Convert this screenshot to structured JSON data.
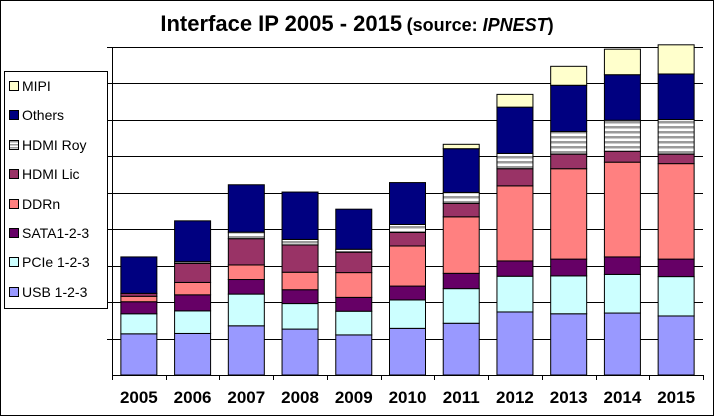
{
  "title": {
    "main": "Interface IP  2005 - 2015",
    "source_prefix": "(source: ",
    "source_name": "IPNEST",
    "source_suffix": ")"
  },
  "chart_data": {
    "type": "bar",
    "stacked": true,
    "categories": [
      "2005",
      "2006",
      "2007",
      "2008",
      "2009",
      "2010",
      "2011",
      "2012",
      "2013",
      "2014",
      "2015"
    ],
    "ylim": [
      0,
      900
    ],
    "y_ticks_labeled": false,
    "grid": "horizontal",
    "legend_position": "left",
    "xlabel": "",
    "ylabel": "",
    "series": [
      {
        "name": "USB 1-2-3",
        "color": "#9999FF",
        "values": [
          113,
          114,
          135,
          126,
          110,
          128,
          142,
          173,
          168,
          170,
          162
        ]
      },
      {
        "name": "PCIe 1-2-3",
        "color": "#CCFFFF",
        "values": [
          55,
          62,
          87,
          70,
          65,
          78,
          95,
          98,
          104,
          106,
          108
        ]
      },
      {
        "name": "SATA1-2-3",
        "color": "#660066",
        "values": [
          33,
          44,
          40,
          38,
          38,
          38,
          42,
          42,
          46,
          48,
          48
        ]
      },
      {
        "name": "DDRn",
        "color": "#FF8080",
        "values": [
          15,
          34,
          40,
          48,
          68,
          110,
          155,
          206,
          248,
          260,
          262
        ]
      },
      {
        "name": "HDMI Lic",
        "color": "#993366",
        "values": [
          8,
          52,
          72,
          75,
          56,
          37,
          37,
          47,
          40,
          30,
          26
        ]
      },
      {
        "name": "HDMI Roy",
        "color": "#C0C0C0",
        "pattern": "stripes",
        "values": [
          0,
          5,
          18,
          15,
          8,
          22,
          30,
          42,
          62,
          85,
          95
        ]
      },
      {
        "name": "Others",
        "color": "#000080",
        "values": [
          100,
          112,
          130,
          130,
          110,
          115,
          120,
          127,
          127,
          125,
          125
        ]
      },
      {
        "name": "MIPI",
        "color": "#FFFFCC",
        "values": [
          0,
          0,
          0,
          0,
          0,
          0,
          12,
          35,
          52,
          70,
          80
        ]
      }
    ]
  }
}
